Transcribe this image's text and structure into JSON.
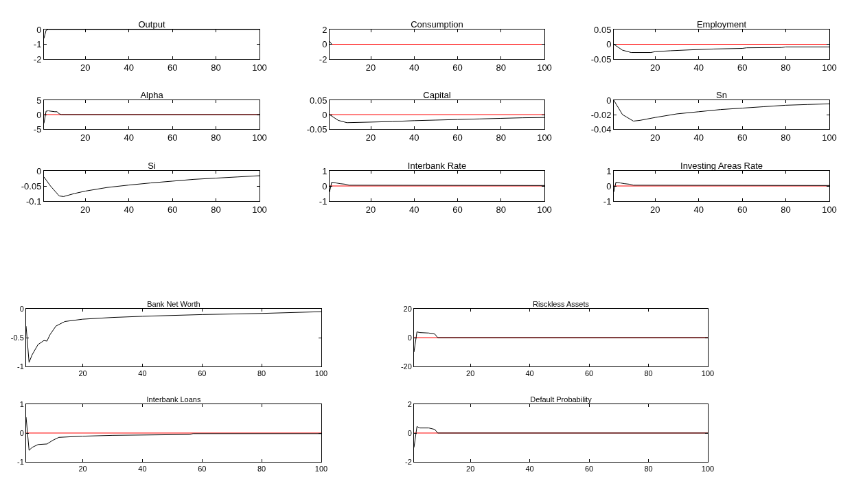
{
  "chart_data": [
    {
      "type": "line",
      "title": "Output",
      "xlim": [
        1,
        100
      ],
      "xticks": [
        20,
        40,
        60,
        80,
        100
      ],
      "ylim": [
        -2,
        0
      ],
      "yticks": [
        -2,
        -1,
        0
      ],
      "series": [
        {
          "color": "#000000",
          "x": [
            1,
            2,
            3,
            100
          ],
          "values": [
            -0.6,
            -0.05,
            0,
            0
          ]
        }
      ]
    },
    {
      "type": "line",
      "title": "Consumption",
      "xlim": [
        1,
        100
      ],
      "xticks": [
        20,
        40,
        60,
        80,
        100
      ],
      "ylim": [
        -2,
        2
      ],
      "yticks": [
        -2,
        0,
        2
      ],
      "ref_lines": [
        {
          "axis": "y",
          "value": 0,
          "color": "#ff0000"
        }
      ],
      "series": [
        {
          "color": "#000000",
          "x": [
            1,
            2
          ],
          "values": [
            0.4,
            0
          ]
        }
      ]
    },
    {
      "type": "line",
      "title": "Employment",
      "xlim": [
        1,
        100
      ],
      "xticks": [
        20,
        40,
        60,
        80,
        100
      ],
      "ylim": [
        -0.05,
        0.05
      ],
      "yticks": [
        -0.05,
        0,
        0.05
      ],
      "ref_lines": [
        {
          "axis": "y",
          "value": 0,
          "color": "#ff0000"
        }
      ],
      "series": [
        {
          "color": "#000000",
          "x": [
            1,
            5,
            9,
            18,
            20,
            27,
            36,
            47,
            60,
            62,
            78,
            80,
            100
          ],
          "values": [
            0,
            -0.02,
            -0.028,
            -0.028,
            -0.025,
            -0.022,
            -0.019,
            -0.016,
            -0.014,
            -0.012,
            -0.011,
            -0.009,
            -0.009
          ]
        }
      ]
    },
    {
      "type": "line",
      "title": "Alpha",
      "xlim": [
        1,
        100
      ],
      "xticks": [
        20,
        40,
        60,
        80,
        100
      ],
      "ylim": [
        -5,
        5
      ],
      "yticks": [
        -5,
        0,
        5
      ],
      "ref_lines": [
        {
          "axis": "y",
          "value": 0,
          "color": "#ff0000"
        }
      ],
      "series": [
        {
          "color": "#000000",
          "x": [
            1,
            2,
            3,
            6,
            7,
            8,
            9,
            100
          ],
          "values": [
            -3,
            1.2,
            1.3,
            1.0,
            1.0,
            0.3,
            0,
            0
          ]
        }
      ]
    },
    {
      "type": "line",
      "title": "Capital",
      "xlim": [
        1,
        100
      ],
      "xticks": [
        20,
        40,
        60,
        80,
        100
      ],
      "ylim": [
        -0.05,
        0.05
      ],
      "yticks": [
        -0.05,
        0,
        0.05
      ],
      "ref_lines": [
        {
          "axis": "y",
          "value": 0,
          "color": "#ff0000"
        }
      ],
      "series": [
        {
          "color": "#000000",
          "x": [
            1,
            5,
            9,
            20,
            30,
            40,
            50,
            60,
            70,
            80,
            90,
            100
          ],
          "values": [
            0,
            -0.02,
            -0.028,
            -0.026,
            -0.024,
            -0.021,
            -0.019,
            -0.017,
            -0.015,
            -0.013,
            -0.011,
            -0.01
          ]
        }
      ]
    },
    {
      "type": "line",
      "title": "Sn",
      "xlim": [
        1,
        100
      ],
      "xticks": [
        20,
        40,
        60,
        80,
        100
      ],
      "ylim": [
        -0.04,
        0
      ],
      "yticks": [
        -0.04,
        -0.02,
        0
      ],
      "series": [
        {
          "color": "#000000",
          "x": [
            1,
            5,
            10,
            13,
            20,
            30,
            40,
            50,
            60,
            70,
            80,
            90,
            100
          ],
          "values": [
            0,
            -0.02,
            -0.029,
            -0.028,
            -0.024,
            -0.019,
            -0.016,
            -0.013,
            -0.011,
            -0.009,
            -0.007,
            -0.006,
            -0.005
          ]
        }
      ]
    },
    {
      "type": "line",
      "title": "Si",
      "xlim": [
        1,
        100
      ],
      "xticks": [
        20,
        40,
        60,
        80,
        100
      ],
      "ylim": [
        -0.1,
        0
      ],
      "yticks": [
        -0.1,
        -0.05,
        0
      ],
      "series": [
        {
          "color": "#000000",
          "x": [
            1,
            4,
            8,
            10,
            15,
            20,
            30,
            40,
            50,
            60,
            70,
            80,
            90,
            100
          ],
          "values": [
            -0.02,
            -0.05,
            -0.083,
            -0.085,
            -0.075,
            -0.067,
            -0.055,
            -0.047,
            -0.04,
            -0.034,
            -0.028,
            -0.024,
            -0.02,
            -0.016
          ]
        }
      ]
    },
    {
      "type": "line",
      "title": "Interbank Rate",
      "xlim": [
        1,
        100
      ],
      "xticks": [
        20,
        40,
        60,
        80,
        100
      ],
      "ylim": [
        -1,
        1
      ],
      "yticks": [
        -1,
        0,
        1
      ],
      "ref_lines": [
        {
          "axis": "y",
          "value": 0,
          "color": "#ff0000"
        }
      ],
      "series": [
        {
          "color": "#000000",
          "x": [
            1,
            2,
            4,
            6,
            8,
            10,
            100
          ],
          "values": [
            -0.4,
            0.25,
            0.2,
            0.15,
            0.12,
            0.05,
            0.03
          ]
        }
      ]
    },
    {
      "type": "line",
      "title": "Investing Areas Rate",
      "xlim": [
        1,
        100
      ],
      "xticks": [
        20,
        40,
        60,
        80,
        100
      ],
      "ylim": [
        -1,
        1
      ],
      "yticks": [
        -1,
        0,
        1
      ],
      "ref_lines": [
        {
          "axis": "y",
          "value": 0,
          "color": "#ff0000"
        }
      ],
      "series": [
        {
          "color": "#000000",
          "x": [
            1,
            2,
            4,
            6,
            8,
            10,
            100
          ],
          "values": [
            -0.4,
            0.25,
            0.2,
            0.15,
            0.12,
            0.05,
            0.03
          ]
        }
      ]
    },
    {
      "type": "line",
      "title": "Bank Net Worth",
      "xlim": [
        1,
        100
      ],
      "xticks": [
        20,
        40,
        60,
        80,
        100
      ],
      "ylim": [
        -1,
        0
      ],
      "yticks": [
        -1,
        -0.5,
        0
      ],
      "series": [
        {
          "color": "#000000",
          "x": [
            1,
            2,
            3,
            5,
            7,
            8,
            9,
            11,
            14,
            20,
            30,
            40,
            60,
            80,
            100
          ],
          "values": [
            -0.3,
            -0.93,
            -0.8,
            -0.62,
            -0.55,
            -0.56,
            -0.45,
            -0.3,
            -0.22,
            -0.18,
            -0.15,
            -0.13,
            -0.1,
            -0.08,
            -0.05
          ]
        }
      ]
    },
    {
      "type": "line",
      "title": "Risckless Assets",
      "xlim": [
        1,
        100
      ],
      "xticks": [
        20,
        40,
        60,
        80,
        100
      ],
      "ylim": [
        -20,
        20
      ],
      "yticks": [
        -20,
        0,
        20
      ],
      "ref_lines": [
        {
          "axis": "y",
          "value": 0,
          "color": "#ff0000"
        }
      ],
      "series": [
        {
          "color": "#000000",
          "x": [
            1,
            2,
            3,
            6,
            8,
            9,
            100
          ],
          "values": [
            -10,
            4,
            3.5,
            3.2,
            2.5,
            0,
            0
          ]
        }
      ]
    },
    {
      "type": "line",
      "title": "Interbank Loans",
      "xlim": [
        1,
        100
      ],
      "xticks": [
        20,
        40,
        60,
        80,
        100
      ],
      "ylim": [
        -1,
        1
      ],
      "yticks": [
        -1,
        0,
        1
      ],
      "ref_lines": [
        {
          "axis": "y",
          "value": 0,
          "color": "#ff0000"
        }
      ],
      "series": [
        {
          "color": "#000000",
          "x": [
            1,
            2,
            3,
            5,
            8,
            10,
            12,
            20,
            30,
            56,
            57,
            100
          ],
          "values": [
            0.55,
            -0.6,
            -0.5,
            -0.4,
            -0.38,
            -0.25,
            -0.15,
            -0.11,
            -0.08,
            -0.05,
            -0.02,
            -0.02
          ]
        }
      ]
    },
    {
      "type": "line",
      "title": "Default Probability",
      "xlim": [
        1,
        100
      ],
      "xticks": [
        20,
        40,
        60,
        80,
        100
      ],
      "ylim": [
        -2,
        2
      ],
      "yticks": [
        -2,
        0,
        2
      ],
      "ref_lines": [
        {
          "axis": "y",
          "value": 0,
          "color": "#ff0000"
        }
      ],
      "series": [
        {
          "color": "#000000",
          "x": [
            1,
            2,
            3,
            6,
            8,
            9,
            100
          ],
          "values": [
            -1,
            0.45,
            0.35,
            0.35,
            0.25,
            0,
            0
          ]
        }
      ]
    }
  ]
}
